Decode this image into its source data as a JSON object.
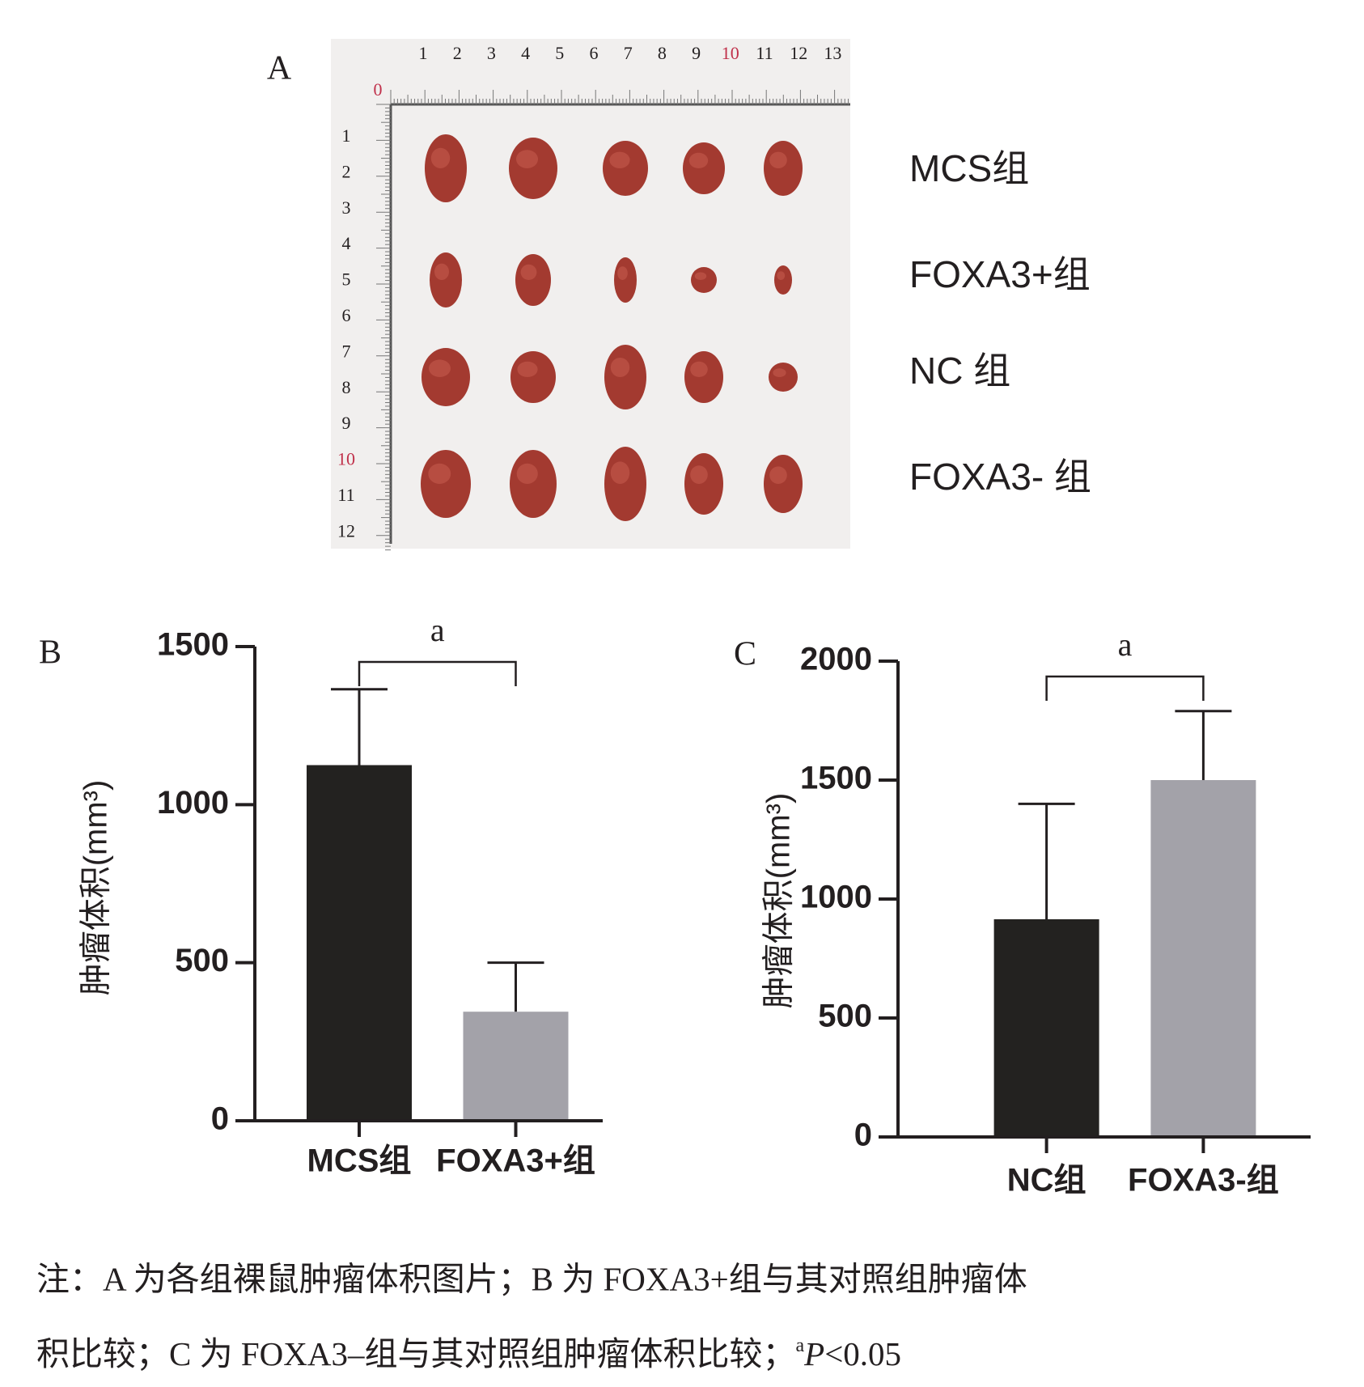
{
  "panel_a": {
    "label": "A",
    "ruler_top": [
      0,
      1,
      2,
      3,
      4,
      5,
      6,
      7,
      8,
      9,
      10,
      11,
      12,
      13
    ],
    "ruler_left": [
      1,
      2,
      3,
      4,
      5,
      6,
      7,
      8,
      9,
      10,
      11,
      12
    ],
    "groups": [
      "MCS组",
      "FOXA3+组",
      "NC 组",
      "FOXA3- 组"
    ]
  },
  "chart_data": [
    {
      "type": "bar",
      "panel_label": "B",
      "y_label": "肿瘤体积(mm³)",
      "categories": [
        "MCS组",
        "FOXA3+组"
      ],
      "values": [
        1125,
        345
      ],
      "errors": [
        240,
        155
      ],
      "colors": [
        "#232220",
        "#a3a2a9"
      ],
      "ylim": [
        0,
        1500
      ],
      "yticks": [
        0,
        500,
        1000,
        1500
      ],
      "significance": "a"
    },
    {
      "type": "bar",
      "panel_label": "C",
      "y_label": "肿瘤体积(mm³)",
      "categories": [
        "NC组",
        "FOXA3-组"
      ],
      "values": [
        915,
        1500
      ],
      "errors": [
        485,
        290
      ],
      "colors": [
        "#232220",
        "#a3a2a9"
      ],
      "ylim": [
        0,
        2000
      ],
      "yticks": [
        0,
        500,
        1000,
        1500,
        2000
      ],
      "significance": "a"
    }
  ],
  "caption": {
    "line1": "注：A 为各组裸鼠肿瘤体积图片；B 为 FOXA3+组与其对照组肿瘤体",
    "line2": "积比较；C 为 FOXA3–组与其对照组肿瘤体积比较；",
    "sup": "a",
    "p": "P",
    "threshold": "<0.05"
  }
}
